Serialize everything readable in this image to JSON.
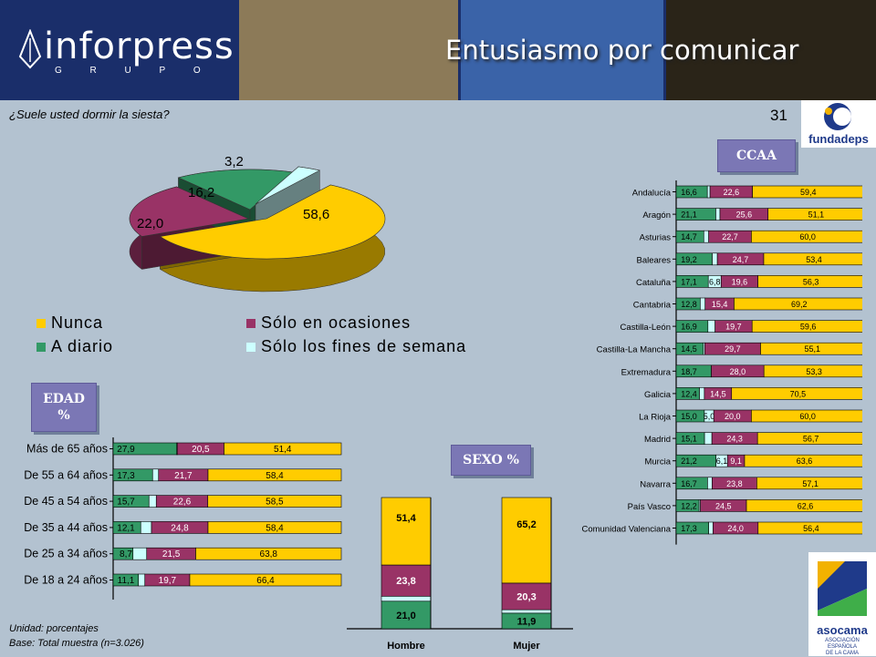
{
  "header": {
    "brand": "inforpress",
    "brand_sub": "G R U P O",
    "headline": "Entusiasmo por comunicar"
  },
  "question": "¿Suele usted dormir la siesta?",
  "page_number": "31",
  "logos": {
    "fundadeps": "fundadeps",
    "asocama": "asocama",
    "asocama_sub": [
      "ASOCIACIÓN",
      "ESPAÑOLA",
      "DE LA CAMA"
    ]
  },
  "tags": {
    "ccaa": "CCAA",
    "edad_line1": "EDAD",
    "edad_line2": "%",
    "sexo": "SEXO %"
  },
  "colors": {
    "nunca": "#ffcc00",
    "ocasiones": "#993366",
    "diario": "#339966",
    "fines": "#ccffff"
  },
  "footnotes": {
    "unit": "Unidad: porcentajes",
    "base": "Base: Total muestra (n=3.026)"
  },
  "chart_data": [
    {
      "type": "pie",
      "categories": [
        "Nunca",
        "Sólo en ocasiones",
        "A diario",
        "Sólo los fines de semana"
      ],
      "values": [
        58.6,
        22.0,
        16.2,
        3.2
      ],
      "labels": [
        "58,6",
        "22,0",
        "16,2",
        "3,2"
      ],
      "legend": "bottom"
    },
    {
      "type": "bar",
      "stacked": true,
      "orientation": "horizontal",
      "title": "CCAA",
      "series_order": [
        "A diario",
        "Sólo los fines de semana",
        "Sólo en ocasiones",
        "Nunca"
      ],
      "categories": [
        "Andalucía",
        "Aragón",
        "Asturias",
        "Baleares",
        "Cataluña",
        "Cantabria",
        "Castilla-León",
        "Castilla-La Mancha",
        "Extremadura",
        "Galicia",
        "La Rioja",
        "Madrid",
        "Murcia",
        "Navarra",
        "País Vasco",
        "Comunidad Valenciana"
      ],
      "rows": [
        {
          "d": 16.6,
          "dl": "16,6",
          "f": 1.4,
          "fl": "",
          "o": 22.6,
          "ol": "22,6",
          "n": 59.4,
          "nl": "59,4"
        },
        {
          "d": 21.1,
          "dl": "21,1",
          "f": 2.2,
          "fl": "",
          "o": 25.6,
          "ol": "25,6",
          "n": 51.1,
          "nl": "51,1"
        },
        {
          "d": 14.7,
          "dl": "14,7",
          "f": 2.6,
          "fl": "",
          "o": 22.7,
          "ol": "22,7",
          "n": 60.0,
          "nl": "60,0"
        },
        {
          "d": 19.2,
          "dl": "19,2",
          "f": 2.7,
          "fl": "",
          "o": 24.7,
          "ol": "24,7",
          "n": 53.4,
          "nl": "53,4"
        },
        {
          "d": 17.1,
          "dl": "17,1",
          "f": 6.8,
          "fl": "6,8",
          "o": 19.6,
          "ol": "19,6",
          "n": 56.3,
          "nl": "56,3"
        },
        {
          "d": 12.8,
          "dl": "12,8",
          "f": 2.6,
          "fl": "",
          "o": 15.4,
          "ol": "15,4",
          "n": 69.2,
          "nl": "69,2"
        },
        {
          "d": 16.9,
          "dl": "16,9",
          "f": 3.8,
          "fl": "",
          "o": 19.7,
          "ol": "19,7",
          "n": 59.6,
          "nl": "59,6"
        },
        {
          "d": 14.5,
          "dl": "14,5",
          "f": 0.7,
          "fl": "",
          "o": 29.7,
          "ol": "29,7",
          "n": 55.1,
          "nl": "55,1"
        },
        {
          "d": 18.7,
          "dl": "18,7",
          "f": 0.0,
          "fl": "",
          "o": 28.0,
          "ol": "28,0",
          "n": 53.3,
          "nl": "53,3"
        },
        {
          "d": 12.4,
          "dl": "12,4",
          "f": 2.6,
          "fl": "",
          "o": 14.5,
          "ol": "14,5",
          "n": 70.5,
          "nl": "70,5"
        },
        {
          "d": 15.0,
          "dl": "15,0",
          "f": 5.0,
          "fl": "5,0",
          "o": 20.0,
          "ol": "20,0",
          "n": 60.0,
          "nl": "60,0"
        },
        {
          "d": 15.1,
          "dl": "15,1",
          "f": 3.9,
          "fl": "",
          "o": 24.3,
          "ol": "24,3",
          "n": 56.7,
          "nl": "56,7"
        },
        {
          "d": 21.2,
          "dl": "21,2",
          "f": 6.1,
          "fl": "6,1",
          "o": 9.1,
          "ol": "9,1",
          "n": 63.6,
          "nl": "63,6"
        },
        {
          "d": 16.7,
          "dl": "16,7",
          "f": 2.4,
          "fl": "",
          "o": 23.8,
          "ol": "23,8",
          "n": 57.1,
          "nl": "57,1"
        },
        {
          "d": 12.2,
          "dl": "12,2",
          "f": 0.7,
          "fl": "",
          "o": 24.5,
          "ol": "24,5",
          "n": 62.6,
          "nl": "62,6"
        },
        {
          "d": 17.3,
          "dl": "17,3",
          "f": 2.3,
          "fl": "",
          "o": 24.0,
          "ol": "24,0",
          "n": 56.4,
          "nl": "56,4"
        }
      ]
    },
    {
      "type": "bar",
      "stacked": true,
      "orientation": "horizontal",
      "title": "EDAD %",
      "series_order": [
        "A diario",
        "Sólo los fines de semana",
        "Sólo en ocasiones",
        "Nunca"
      ],
      "categories": [
        "Más de 65 años",
        "De 55 a 64 años",
        "De 45 a 54 años",
        "De 35 a 44 años",
        "De 25 a 34 años",
        "De 18 a 24 años"
      ],
      "rows": [
        {
          "d": 27.9,
          "dl": "27,9",
          "f": 0.2,
          "fl": "",
          "o": 20.5,
          "ol": "20,5",
          "n": 51.4,
          "nl": "51,4"
        },
        {
          "d": 17.3,
          "dl": "17,3",
          "f": 2.6,
          "fl": "",
          "o": 21.7,
          "ol": "21,7",
          "n": 58.4,
          "nl": "58,4"
        },
        {
          "d": 15.7,
          "dl": "15,7",
          "f": 3.2,
          "fl": "",
          "o": 22.6,
          "ol": "22,6",
          "n": 58.5,
          "nl": "58,5"
        },
        {
          "d": 12.1,
          "dl": "12,1",
          "f": 4.7,
          "fl": "",
          "o": 24.8,
          "ol": "24,8",
          "n": 58.4,
          "nl": "58,4"
        },
        {
          "d": 8.7,
          "dl": "8,7",
          "f": 6.0,
          "fl": "",
          "o": 21.5,
          "ol": "21,5",
          "n": 63.8,
          "nl": "63,8"
        },
        {
          "d": 11.1,
          "dl": "11,1",
          "f": 2.8,
          "fl": "",
          "o": 19.7,
          "ol": "19,7",
          "n": 66.4,
          "nl": "66,4"
        }
      ]
    },
    {
      "type": "bar",
      "stacked": true,
      "orientation": "vertical",
      "title": "SEXO %",
      "series_order": [
        "A diario",
        "Sólo los fines de semana",
        "Sólo en ocasiones",
        "Nunca"
      ],
      "categories": [
        "Hombre",
        "Mujer"
      ],
      "rows": [
        {
          "d": 21.0,
          "dl": "21,0",
          "f": 3.8,
          "fl": "",
          "o": 23.8,
          "ol": "23,8",
          "n": 51.4,
          "nl": "51,4"
        },
        {
          "d": 11.9,
          "dl": "11,9",
          "f": 2.6,
          "fl": "",
          "o": 20.3,
          "ol": "20,3",
          "n": 65.2,
          "nl": "65,2"
        }
      ]
    }
  ]
}
